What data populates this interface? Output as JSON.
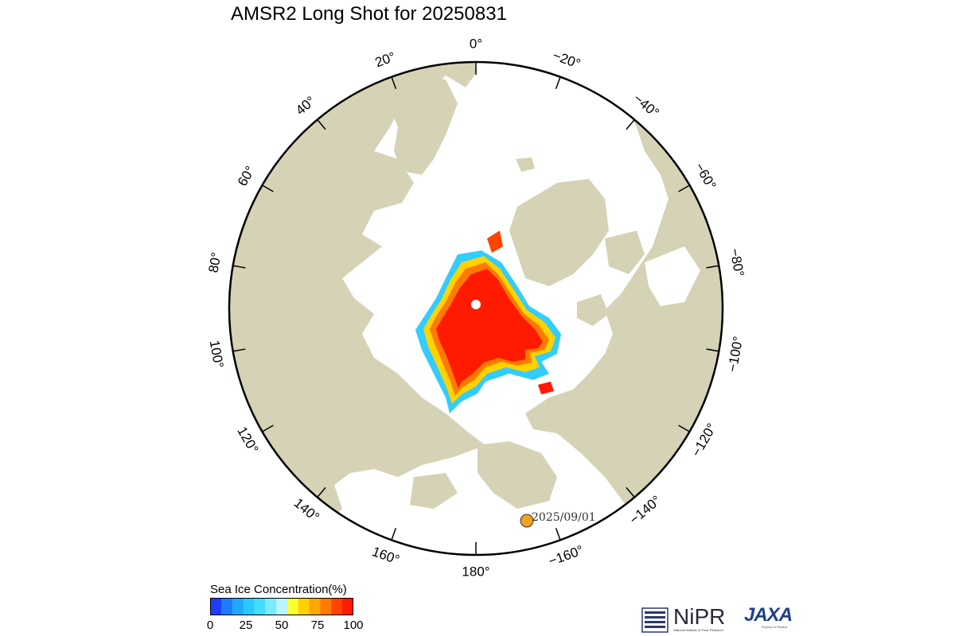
{
  "title": "AMSR2 Long Shot for 20250831",
  "map": {
    "projection": "north-polar-stereographic",
    "longitude_labels": [
      {
        "text": "0°",
        "lon": 0
      },
      {
        "text": "20°",
        "lon": 20
      },
      {
        "text": "40°",
        "lon": 40
      },
      {
        "text": "60°",
        "lon": 60
      },
      {
        "text": "80°",
        "lon": 80
      },
      {
        "text": "100°",
        "lon": 100
      },
      {
        "text": "120°",
        "lon": 120
      },
      {
        "text": "140°",
        "lon": 140
      },
      {
        "text": "160°",
        "lon": 160
      },
      {
        "text": "180°",
        "lon": 180
      },
      {
        "text": "−160°",
        "lon": -160
      },
      {
        "text": "−140°",
        "lon": -140
      },
      {
        "text": "−120°",
        "lon": -120
      },
      {
        "text": "−100°",
        "lon": -100
      },
      {
        "text": "−80°",
        "lon": -80
      },
      {
        "text": "−60°",
        "lon": -60
      },
      {
        "text": "−40°",
        "lon": -40
      },
      {
        "text": "−20°",
        "lon": -20
      }
    ],
    "ship_marker": {
      "label": "2025/09/01",
      "color": "#f2a21b"
    },
    "colors": {
      "land": "#d5d2b6",
      "ocean": "#ffffff",
      "ice_high": "#ff1a00",
      "ice_mid": "#ff7a00",
      "ice_low": "#ffd200",
      "ice_edge": "#33ccff",
      "pole": "#ffffff"
    }
  },
  "colorbar": {
    "title": "Sea Ice Concentration(%)",
    "ticks": [
      "0",
      "25",
      "50",
      "75",
      "100"
    ],
    "colors": [
      "#1e3cff",
      "#1f7bff",
      "#22a8ff",
      "#2bc8ff",
      "#44dcff",
      "#7aeaff",
      "#b8f6ff",
      "#ffff33",
      "#ffd100",
      "#ffa800",
      "#ff7a00",
      "#ff4400",
      "#ff1a00"
    ]
  },
  "logos": {
    "nipr": {
      "text": "NiPR",
      "subtitle": "National Institute of Polar Research"
    },
    "jaxa": {
      "text": "JAXA",
      "subtitle": "Explore to Realize"
    }
  }
}
